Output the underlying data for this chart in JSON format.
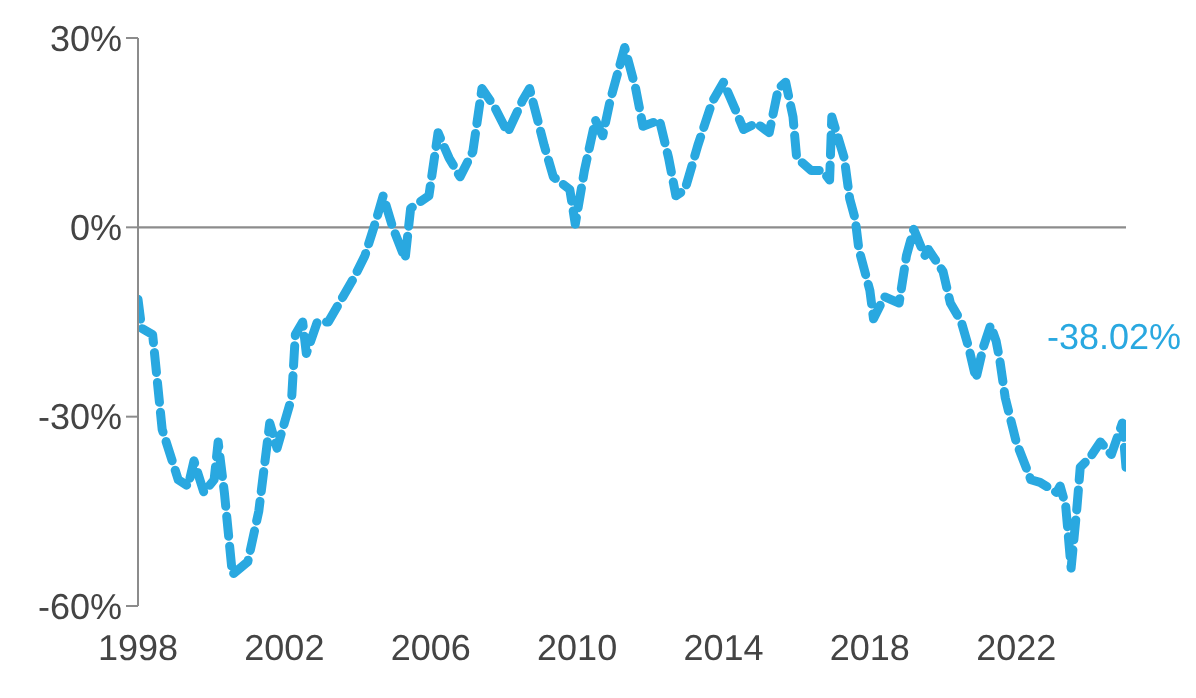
{
  "chart_data": {
    "type": "line",
    "line_style": "dashed",
    "marker": "none",
    "xlim": [
      1998,
      2025
    ],
    "xticks": [
      1998,
      2002,
      2006,
      2010,
      2014,
      2018,
      2022
    ],
    "ylim": [
      -60,
      30
    ],
    "yticks": [
      {
        "value": 30,
        "label": "30%"
      },
      {
        "value": 0,
        "label": "0%"
      },
      {
        "value": -30,
        "label": "-30%"
      },
      {
        "value": -60,
        "label": "-60%"
      }
    ],
    "ref_lines": [
      {
        "axis": "y",
        "value": 0,
        "color": "#8c8c8c"
      }
    ],
    "annotations": [
      "-38.02%"
    ],
    "series": [
      {
        "color": "#29a8e0",
        "x": [
          1998.0,
          1998.1,
          1998.4,
          1998.66,
          1999.1,
          1999.37,
          1999.53,
          1999.8,
          2000.08,
          2000.19,
          2000.36,
          2000.58,
          2001.0,
          2001.3,
          2001.6,
          2001.8,
          2002.2,
          2002.3,
          2002.5,
          2002.6,
          2002.9,
          2003.2,
          2003.6,
          2003.9,
          2004.2,
          2004.5,
          2004.7,
          2004.96,
          2005.3,
          2005.45,
          2005.95,
          2006.2,
          2006.5,
          2006.8,
          2007.15,
          2007.4,
          2007.75,
          2008.1,
          2008.5,
          2008.7,
          2009.1,
          2009.35,
          2009.8,
          2009.95,
          2010.2,
          2010.5,
          2010.7,
          2010.9,
          2011.3,
          2011.6,
          2011.8,
          2012.25,
          2012.5,
          2012.7,
          2012.95,
          2013.3,
          2013.7,
          2014.0,
          2014.3,
          2014.55,
          2014.9,
          2015.25,
          2015.5,
          2015.7,
          2015.9,
          2016.0,
          2016.4,
          2016.7,
          2016.9,
          2016.96,
          2017.3,
          2017.45,
          2017.6,
          2017.7,
          2018.0,
          2018.1,
          2018.4,
          2018.8,
          2019.0,
          2019.2,
          2019.5,
          2019.6,
          2020.0,
          2020.2,
          2020.5,
          2020.7,
          2020.9,
          2021.1,
          2021.3,
          2021.45,
          2021.55,
          2021.7,
          2022.0,
          2022.2,
          2022.4,
          2022.65,
          2023.1,
          2023.2,
          2023.35,
          2023.5,
          2023.65,
          2023.75,
          2024.0,
          2024.3,
          2024.6,
          2024.75,
          2024.9,
          2025.0
        ],
        "values": [
          -11.4,
          -16,
          -17,
          -32,
          -40,
          -41,
          -37,
          -42,
          -40,
          -34,
          -42,
          -55,
          -53,
          -45,
          -31,
          -35,
          -27,
          -17,
          -15,
          -20,
          -15,
          -15,
          -11,
          -8,
          -4.5,
          1,
          5,
          0,
          -5,
          3,
          5,
          15,
          11,
          8,
          12,
          22,
          19,
          15,
          20,
          22,
          13,
          8,
          6,
          0.5,
          9,
          17,
          14.5,
          20,
          28.5,
          22,
          16,
          17,
          11,
          5,
          6,
          13,
          20,
          23,
          19,
          15.5,
          16.5,
          15,
          22,
          23,
          17.5,
          11,
          9,
          9,
          7.5,
          17.5,
          11,
          4.5,
          1.3,
          -3.5,
          -10,
          -14.5,
          -11,
          -12,
          -4.5,
          -0.3,
          -4.5,
          -3.5,
          -7,
          -12,
          -15,
          -19,
          -24,
          -19,
          -15.5,
          -18,
          -21,
          -27,
          -34,
          -37,
          -40,
          -40.4,
          -42,
          -41,
          -44,
          -54,
          -45,
          -38,
          -36.6,
          -34,
          -36,
          -33.5,
          -31,
          -38.02
        ]
      }
    ]
  }
}
